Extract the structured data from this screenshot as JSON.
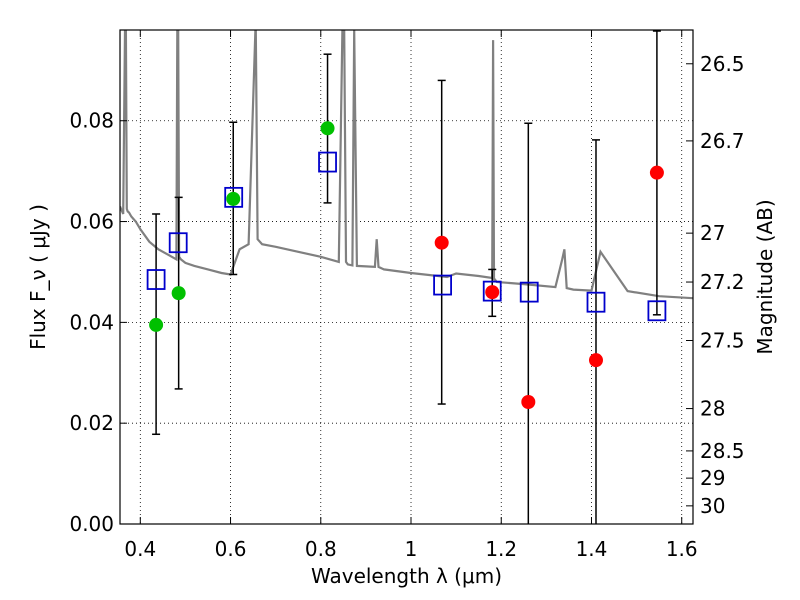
{
  "chart_data": {
    "type": "scatter",
    "xlabel": "Wavelength  λ (μm)",
    "ylabel": "Flux  F_ν  ( μJy )",
    "ylabel_right": "Magnitude (AB)",
    "xlim": [
      0.355,
      1.625
    ],
    "ylim": [
      0.0,
      0.098
    ],
    "grid": true,
    "x_ticks": [
      0.4,
      0.6,
      0.8,
      1.0,
      1.2,
      1.4,
      1.6
    ],
    "x_tick_labels": [
      "0.4",
      "0.6",
      "0.8",
      "1",
      "1.2",
      "1.4",
      "1.6"
    ],
    "y_ticks": [
      0.0,
      0.02,
      0.04,
      0.06,
      0.08
    ],
    "y_tick_labels": [
      "0.00",
      "0.02",
      "0.04",
      "0.06",
      "0.08"
    ],
    "right_ticks": [
      {
        "label": "26.5",
        "flux": 0.0913
      },
      {
        "label": "26.7",
        "flux": 0.076
      },
      {
        "label": "27",
        "flux": 0.0577
      },
      {
        "label": "27.2",
        "flux": 0.048
      },
      {
        "label": "27.5",
        "flux": 0.0364
      },
      {
        "label": "28",
        "flux": 0.0229
      },
      {
        "label": "28.5",
        "flux": 0.0145
      },
      {
        "label": "29",
        "flux": 0.0091
      },
      {
        "label": "30",
        "flux": 0.0036
      }
    ],
    "series": [
      {
        "name": "model spectrum",
        "kind": "line",
        "color": "#808080",
        "x": [
          0.355,
          0.362,
          0.366,
          0.368,
          0.37,
          0.372,
          0.375,
          0.38,
          0.39,
          0.4,
          0.42,
          0.44,
          0.46,
          0.48,
          0.482,
          0.484,
          0.486,
          0.49,
          0.5,
          0.52,
          0.55,
          0.58,
          0.6,
          0.62,
          0.64,
          0.655,
          0.656,
          0.66,
          0.67,
          0.7,
          0.75,
          0.8,
          0.84,
          0.848,
          0.852,
          0.856,
          0.86,
          0.87,
          0.874,
          0.88,
          0.92,
          0.924,
          0.928,
          0.94,
          1.0,
          1.08,
          1.1,
          1.15,
          1.18,
          1.182,
          1.184,
          1.186,
          1.19,
          1.25,
          1.32,
          1.335,
          1.34,
          1.345,
          1.36,
          1.4,
          1.42,
          1.48,
          1.55,
          1.625
        ],
        "y": [
          0.063,
          0.0615,
          0.098,
          0.098,
          0.0625,
          0.062,
          0.0618,
          0.061,
          0.06,
          0.0585,
          0.056,
          0.0545,
          0.0535,
          0.0525,
          0.098,
          0.098,
          0.053,
          0.0525,
          0.0518,
          0.0512,
          0.0505,
          0.0498,
          0.0495,
          0.0545,
          0.0555,
          0.098,
          0.098,
          0.0565,
          0.0555,
          0.055,
          0.054,
          0.053,
          0.052,
          0.098,
          0.098,
          0.052,
          0.0515,
          0.0513,
          0.098,
          0.0512,
          0.051,
          0.0565,
          0.051,
          0.0505,
          0.0498,
          0.049,
          0.0497,
          0.0492,
          0.0488,
          0.096,
          0.0485,
          0.0485,
          0.048,
          0.0476,
          0.047,
          0.0525,
          0.0545,
          0.0468,
          0.0465,
          0.0463,
          0.054,
          0.0462,
          0.0452,
          0.0448
        ]
      },
      {
        "name": "green detections",
        "kind": "points",
        "color": "#00c000",
        "x": [
          0.435,
          0.485,
          0.606,
          0.815
        ],
        "y": [
          0.0395,
          0.0458,
          0.0645,
          0.0785
        ]
      },
      {
        "name": "red points",
        "kind": "points",
        "color": "#ff0000",
        "x": [
          1.068,
          1.18,
          1.26,
          1.41,
          1.545
        ],
        "y": [
          0.0558,
          0.046,
          0.0242,
          0.0325,
          0.0697
        ]
      },
      {
        "name": "model photometry",
        "kind": "squares",
        "color": "#0000cc",
        "x": [
          0.435,
          0.484,
          0.607,
          0.815,
          1.07,
          1.18,
          1.262,
          1.41,
          1.545
        ],
        "y": [
          0.0485,
          0.0558,
          0.0648,
          0.0718,
          0.0474,
          0.0462,
          0.046,
          0.044,
          0.0423
        ]
      }
    ],
    "error_bars": [
      {
        "x": 0.435,
        "low": 0.0178,
        "high": 0.0615
      },
      {
        "x": 0.485,
        "low": 0.0268,
        "high": 0.0648
      },
      {
        "x": 0.606,
        "low": 0.0495,
        "high": 0.0797
      },
      {
        "x": 0.815,
        "low": 0.0637,
        "high": 0.0932
      },
      {
        "x": 1.068,
        "low": 0.0238,
        "high": 0.088
      },
      {
        "x": 1.18,
        "low": 0.0412,
        "high": 0.0505
      },
      {
        "x": 1.26,
        "low": 0.0,
        "high": 0.0795
      },
      {
        "x": 1.41,
        "low": 0.0,
        "high": 0.0762
      },
      {
        "x": 1.545,
        "low": 0.0415,
        "high": 0.0978
      }
    ]
  }
}
